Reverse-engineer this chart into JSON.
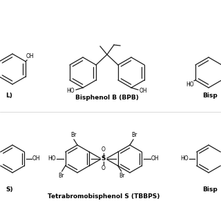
{
  "bg_color": "#ffffff",
  "line_color": "#1a1a1a",
  "text_color": "#000000",
  "title1": "Bisphenol B (BPB)",
  "title2": "Tetrabromobisphenol S (TBBPS)",
  "label_tl": "L)",
  "label_tr": "Bisp",
  "label_bl": "S)",
  "label_br": "Bisp",
  "font_size_title": 6.5,
  "font_size_label": 6.5,
  "font_size_atom": 5.5,
  "lw": 0.9
}
